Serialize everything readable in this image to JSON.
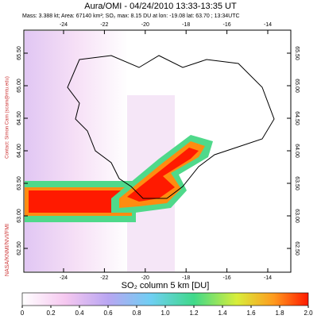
{
  "header": {
    "title": "Aura/OMI - 04/24/2010 13:33-13:35 UT",
    "info": "Mass: 3.388 kt; Area: 67140 km²; SO₂ max: 8.15 DU at lon: -19.08 lat: 63.70 ; 13:34UTC"
  },
  "credits": {
    "contact": "Contact: Simon Carn (scarn@mtu.edu)",
    "agencies": "NASA/KNMI/NVI/FMI"
  },
  "axes": {
    "lon_ticks": [
      "-24",
      "-22",
      "-20",
      "-18",
      "-16",
      "-14"
    ],
    "lat_ticks": [
      "65.50",
      "65.00",
      "64.50",
      "64.00",
      "63.50",
      "63.00",
      "62.50"
    ]
  },
  "colorbar": {
    "label": "SO₂ column 5 km [DU]",
    "ticks": [
      "0",
      "0.2",
      "0.4",
      "0.6",
      "0.8",
      "1.0",
      "1.2",
      "1.4",
      "1.6",
      "1.8",
      "2.0"
    ]
  }
}
